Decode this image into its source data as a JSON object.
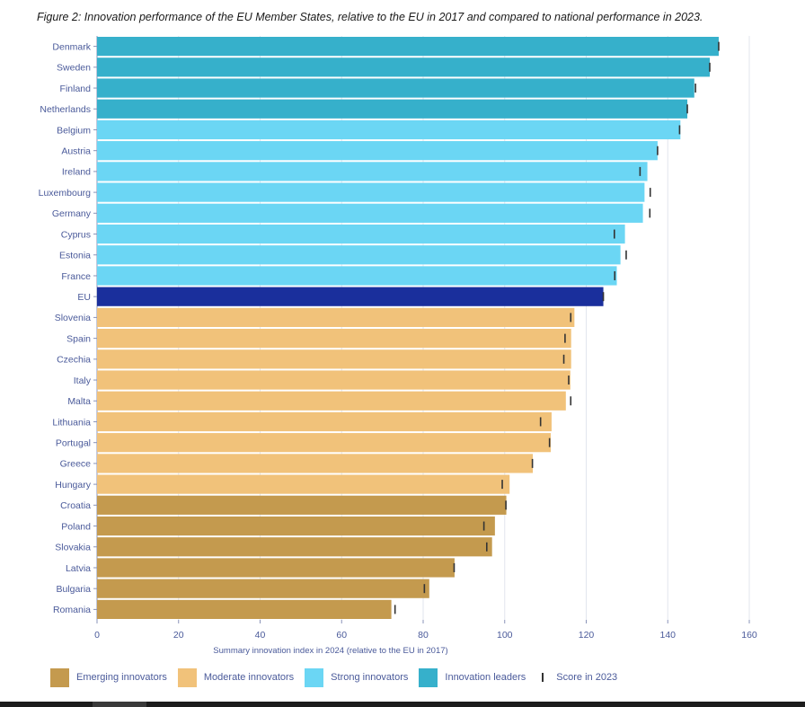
{
  "figure": {
    "title": "Figure 2: Innovation performance of the EU Member States, relative to the EU in 2017 and compared to national performance in 2023."
  },
  "chart_data": {
    "type": "bar",
    "orientation": "horizontal",
    "title": "Figure 2: Innovation performance of the EU Member States, relative to the EU in 2017 and compared to national performance in 2023.",
    "xlabel": "Summary innovation index in 2024 (relative to the EU in 2017)",
    "ylabel": "",
    "xlim": [
      0,
      160
    ],
    "xticks": [
      0,
      20,
      40,
      60,
      80,
      100,
      120,
      140,
      160
    ],
    "grid": "vertical",
    "legend_position": "bottom",
    "categories": [
      "Denmark",
      "Sweden",
      "Finland",
      "Netherlands",
      "Belgium",
      "Austria",
      "Ireland",
      "Luxembourg",
      "Germany",
      "Cyprus",
      "Estonia",
      "France",
      "EU",
      "Slovenia",
      "Spain",
      "Czechia",
      "Italy",
      "Malta",
      "Lithuania",
      "Portugal",
      "Greece",
      "Hungary",
      "Croatia",
      "Poland",
      "Slovakia",
      "Latvia",
      "Bulgaria",
      "Romania"
    ],
    "values": [
      152.5,
      150.3,
      146.5,
      144.8,
      143.1,
      137.5,
      135.0,
      134.3,
      133.9,
      129.5,
      128.4,
      127.5,
      124.2,
      117.1,
      116.3,
      116.3,
      116.1,
      115.0,
      111.5,
      111.3,
      106.9,
      101.2,
      100.4,
      97.6,
      96.9,
      87.7,
      81.5,
      72.2
    ],
    "score_2023": [
      152.5,
      150.3,
      146.8,
      144.8,
      142.9,
      137.5,
      133.2,
      135.7,
      135.6,
      126.9,
      129.8,
      127.0,
      124.2,
      116.2,
      114.8,
      114.5,
      115.7,
      116.2,
      108.8,
      111.0,
      106.8,
      99.4,
      100.3,
      94.9,
      95.6,
      87.6,
      80.3,
      73.1
    ],
    "groups": [
      "leader",
      "leader",
      "leader",
      "leader",
      "strong",
      "strong",
      "strong",
      "strong",
      "strong",
      "strong",
      "strong",
      "strong",
      "eu",
      "moderate",
      "moderate",
      "moderate",
      "moderate",
      "moderate",
      "moderate",
      "moderate",
      "moderate",
      "moderate",
      "emerging",
      "emerging",
      "emerging",
      "emerging",
      "emerging",
      "emerging"
    ],
    "colors": {
      "emerging": "#c49a4e",
      "moderate": "#f1c27a",
      "strong": "#6bd6f4",
      "leader": "#36b0cb",
      "eu": "#1a2f9c",
      "marker": "#333333",
      "grid": "#e2e6ee"
    },
    "legend": [
      {
        "key": "emerging",
        "label": "Emerging innovators"
      },
      {
        "key": "moderate",
        "label": "Moderate innovators"
      },
      {
        "key": "strong",
        "label": "Strong innovators"
      },
      {
        "key": "leader",
        "label": "Innovation leaders"
      },
      {
        "key": "marker",
        "label": "Score in 2023"
      }
    ]
  }
}
